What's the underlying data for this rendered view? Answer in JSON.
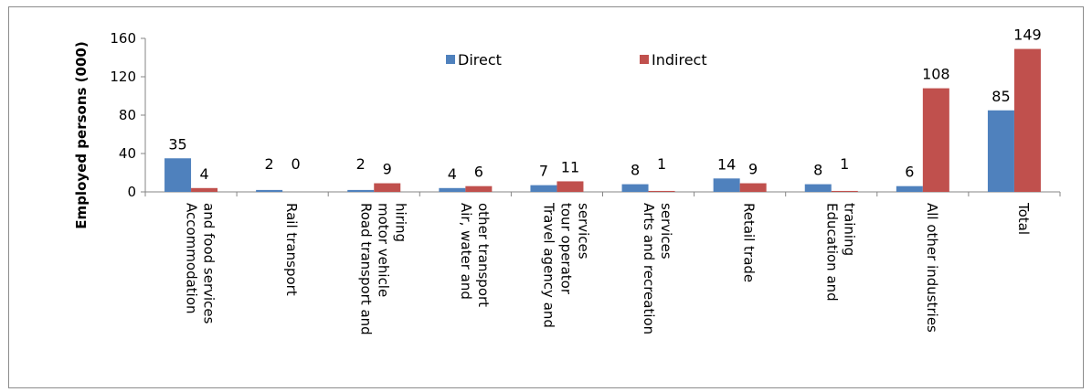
{
  "chart_data": {
    "type": "bar",
    "title": "",
    "xlabel": "",
    "ylabel": "Employed persons (000)",
    "ylim": [
      0,
      160
    ],
    "yticks": [
      0,
      40,
      80,
      120,
      160
    ],
    "grid": false,
    "legend_position": "top-center",
    "categories": [
      [
        "Accommodation",
        "and food services"
      ],
      [
        "Rail transport"
      ],
      [
        "Road transport and",
        "motor vehicle",
        "hiring"
      ],
      [
        "Air, water and",
        "other transport"
      ],
      [
        "Travel agency and",
        "tour operator",
        "services"
      ],
      [
        "Arts and recreation",
        "services"
      ],
      [
        "Retail trade"
      ],
      [
        "Education and",
        "training"
      ],
      [
        "All other industries"
      ],
      [
        "Total"
      ]
    ],
    "series": [
      {
        "name": "Direct",
        "color": "#4f81bd",
        "values": [
          35,
          2,
          2,
          4,
          7,
          8,
          14,
          8,
          6,
          85
        ]
      },
      {
        "name": "Indirect",
        "color": "#c0504d",
        "values": [
          4,
          0,
          9,
          6,
          11,
          1,
          9,
          1,
          108,
          149
        ]
      }
    ]
  }
}
